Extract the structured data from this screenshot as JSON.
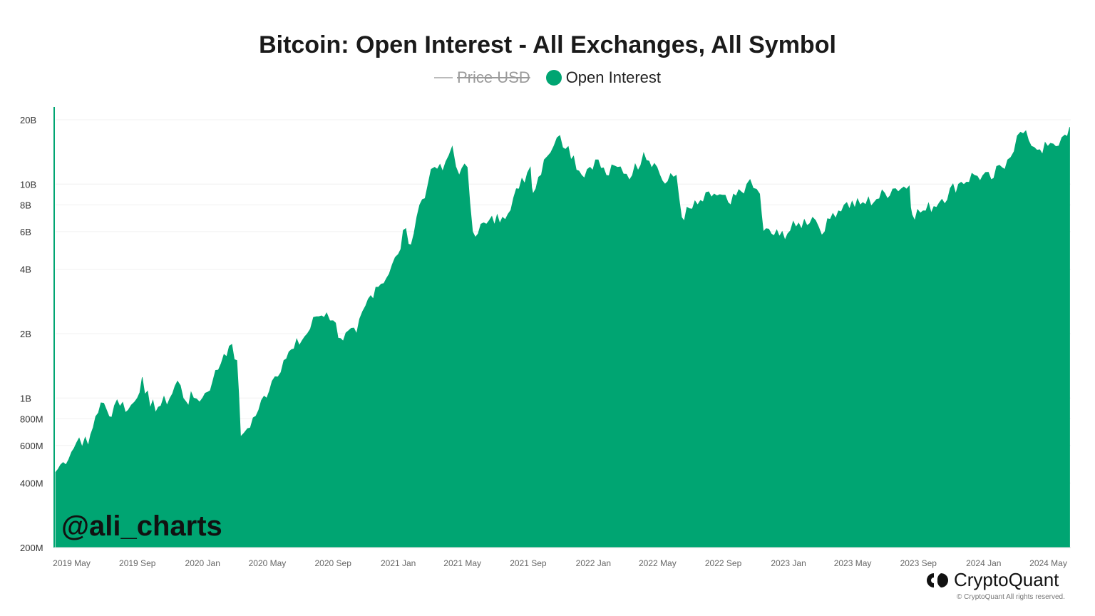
{
  "colors": {
    "area": "#00a572",
    "price_line": "#bbbbbb",
    "grid": "#f0f0f0",
    "axis_text": "#666666"
  },
  "legend": {
    "price_label": "Price USD",
    "oi_label": "Open Interest"
  },
  "watermark": "@ali_charts",
  "brand": {
    "name": "CryptoQuant",
    "copyright": "© CryptoQuant All rights reserved.",
    "icon": "cryptoquant-logo-icon"
  },
  "chart_data": {
    "type": "area",
    "title": "Bitcoin: Open Interest - All Exchanges, All Symbol",
    "xlabel": "",
    "ylabel": "",
    "y_scale": "log",
    "ylim": [
      200000000,
      20000000000
    ],
    "grid": true,
    "legend_position": "top-center",
    "y_ticks": [
      {
        "value": 200000000,
        "label": "200M"
      },
      {
        "value": 400000000,
        "label": "400M"
      },
      {
        "value": 600000000,
        "label": "600M"
      },
      {
        "value": 800000000,
        "label": "800M"
      },
      {
        "value": 1000000000,
        "label": "1B"
      },
      {
        "value": 2000000000,
        "label": "2B"
      },
      {
        "value": 4000000000,
        "label": "4B"
      },
      {
        "value": 6000000000,
        "label": "6B"
      },
      {
        "value": 8000000000,
        "label": "8B"
      },
      {
        "value": 10000000000,
        "label": "10B"
      },
      {
        "value": 20000000000,
        "label": "20B"
      }
    ],
    "x_ticks": [
      {
        "date": "2019-05-01",
        "label": "2019 May"
      },
      {
        "date": "2019-09-01",
        "label": "2019 Sep"
      },
      {
        "date": "2020-01-01",
        "label": "2020 Jan"
      },
      {
        "date": "2020-05-01",
        "label": "2020 May"
      },
      {
        "date": "2020-09-01",
        "label": "2020 Sep"
      },
      {
        "date": "2021-01-01",
        "label": "2021 Jan"
      },
      {
        "date": "2021-05-01",
        "label": "2021 May"
      },
      {
        "date": "2021-09-01",
        "label": "2021 Sep"
      },
      {
        "date": "2022-01-01",
        "label": "2022 Jan"
      },
      {
        "date": "2022-05-01",
        "label": "2022 May"
      },
      {
        "date": "2022-09-01",
        "label": "2022 Sep"
      },
      {
        "date": "2023-01-01",
        "label": "2023 Jan"
      },
      {
        "date": "2023-05-01",
        "label": "2023 May"
      },
      {
        "date": "2023-09-01",
        "label": "2023 Sep"
      },
      {
        "date": "2024-01-01",
        "label": "2024 Jan"
      },
      {
        "date": "2024-05-01",
        "label": "2024 May"
      }
    ],
    "series": [
      {
        "name": "Open Interest",
        "points": [
          [
            "2019-04-01",
            450000000
          ],
          [
            "2019-04-15",
            500000000
          ],
          [
            "2019-05-01",
            560000000
          ],
          [
            "2019-05-15",
            650000000
          ],
          [
            "2019-06-01",
            600000000
          ],
          [
            "2019-06-15",
            820000000
          ],
          [
            "2019-06-25",
            950000000
          ],
          [
            "2019-07-10",
            820000000
          ],
          [
            "2019-07-25",
            980000000
          ],
          [
            "2019-08-15",
            880000000
          ],
          [
            "2019-09-01",
            1000000000
          ],
          [
            "2019-09-10",
            1250000000
          ],
          [
            "2019-09-25",
            900000000
          ],
          [
            "2019-10-15",
            920000000
          ],
          [
            "2019-11-01",
            1000000000
          ],
          [
            "2019-11-15",
            1200000000
          ],
          [
            "2019-12-01",
            960000000
          ],
          [
            "2019-12-15",
            1000000000
          ],
          [
            "2020-01-01",
            1000000000
          ],
          [
            "2020-01-20",
            1200000000
          ],
          [
            "2020-02-10",
            1600000000
          ],
          [
            "2020-02-20",
            1750000000
          ],
          [
            "2020-03-05",
            1500000000
          ],
          [
            "2020-03-12",
            660000000
          ],
          [
            "2020-03-25",
            720000000
          ],
          [
            "2020-04-15",
            880000000
          ],
          [
            "2020-05-10",
            1200000000
          ],
          [
            "2020-06-01",
            1500000000
          ],
          [
            "2020-06-20",
            1700000000
          ],
          [
            "2020-07-15",
            2000000000
          ],
          [
            "2020-08-01",
            2400000000
          ],
          [
            "2020-08-20",
            2500000000
          ],
          [
            "2020-09-01",
            2300000000
          ],
          [
            "2020-09-15",
            1900000000
          ],
          [
            "2020-10-15",
            2000000000
          ],
          [
            "2020-11-01",
            2700000000
          ],
          [
            "2020-11-20",
            3300000000
          ],
          [
            "2020-12-15",
            3800000000
          ],
          [
            "2021-01-01",
            4700000000
          ],
          [
            "2021-01-15",
            6200000000
          ],
          [
            "2021-01-25",
            5200000000
          ],
          [
            "2021-02-10",
            8000000000
          ],
          [
            "2021-02-25",
            9800000000
          ],
          [
            "2021-03-10",
            12000000000
          ],
          [
            "2021-03-25",
            11500000000
          ],
          [
            "2021-04-12",
            15000000000
          ],
          [
            "2021-04-25",
            11000000000
          ],
          [
            "2021-05-10",
            12000000000
          ],
          [
            "2021-05-20",
            6000000000
          ],
          [
            "2021-06-15",
            6500000000
          ],
          [
            "2021-07-15",
            7000000000
          ],
          [
            "2021-08-15",
            9500000000
          ],
          [
            "2021-09-05",
            12000000000
          ],
          [
            "2021-09-10",
            9000000000
          ],
          [
            "2021-10-01",
            13000000000
          ],
          [
            "2021-10-25",
            16500000000
          ],
          [
            "2021-11-15",
            15000000000
          ],
          [
            "2021-12-10",
            11000000000
          ],
          [
            "2022-01-05",
            13000000000
          ],
          [
            "2022-01-25",
            11000000000
          ],
          [
            "2022-02-15",
            12000000000
          ],
          [
            "2022-03-15",
            11000000000
          ],
          [
            "2022-04-05",
            14000000000
          ],
          [
            "2022-04-25",
            12500000000
          ],
          [
            "2022-05-15",
            10000000000
          ],
          [
            "2022-06-05",
            11000000000
          ],
          [
            "2022-06-15",
            7000000000
          ],
          [
            "2022-07-15",
            8000000000
          ],
          [
            "2022-08-15",
            9000000000
          ],
          [
            "2022-09-15",
            8000000000
          ],
          [
            "2022-10-15",
            10000000000
          ],
          [
            "2022-11-08",
            9000000000
          ],
          [
            "2022-11-15",
            6000000000
          ],
          [
            "2022-12-15",
            5700000000
          ],
          [
            "2023-01-15",
            6300000000
          ],
          [
            "2023-02-15",
            7000000000
          ],
          [
            "2023-03-10",
            6000000000
          ],
          [
            "2023-03-25",
            7300000000
          ],
          [
            "2023-04-15",
            8000000000
          ],
          [
            "2023-05-15",
            8000000000
          ],
          [
            "2023-06-15",
            8500000000
          ],
          [
            "2023-07-15",
            9500000000
          ],
          [
            "2023-08-15",
            9800000000
          ],
          [
            "2023-08-20",
            7200000000
          ],
          [
            "2023-09-15",
            7500000000
          ],
          [
            "2023-10-15",
            8500000000
          ],
          [
            "2023-11-15",
            10000000000
          ],
          [
            "2023-12-15",
            11000000000
          ],
          [
            "2024-01-15",
            10500000000
          ],
          [
            "2024-02-15",
            13000000000
          ],
          [
            "2024-03-10",
            17500000000
          ],
          [
            "2024-03-25",
            16000000000
          ],
          [
            "2024-04-15",
            14500000000
          ],
          [
            "2024-05-15",
            15000000000
          ],
          [
            "2024-06-01",
            17000000000
          ],
          [
            "2024-06-10",
            18500000000
          ]
        ]
      }
    ]
  }
}
